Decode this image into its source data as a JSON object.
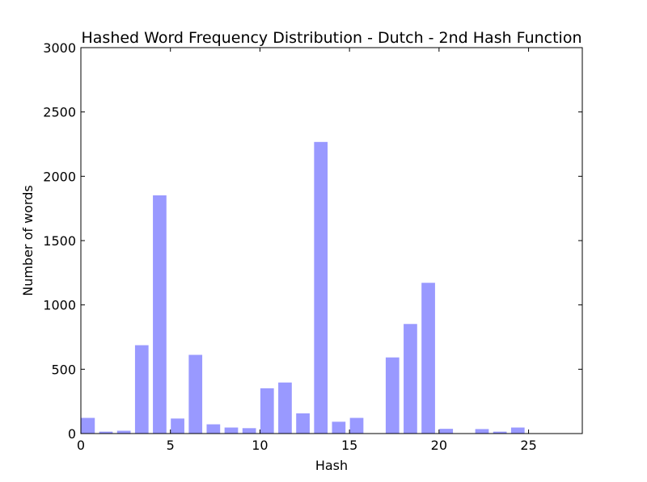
{
  "chart_data": {
    "type": "bar",
    "title": "Hashed Word Frequency Distribution - Dutch - 2nd Hash Function",
    "xlabel": "Hash",
    "ylabel": "Number of words",
    "xlim": [
      0,
      28
    ],
    "ylim": [
      0,
      3000
    ],
    "xticks": [
      0,
      5,
      10,
      15,
      20,
      25
    ],
    "yticks": [
      0,
      500,
      1000,
      1500,
      2000,
      2500,
      3000
    ],
    "bar_width": 0.8,
    "grid": false,
    "color": "#9999ff",
    "x": [
      0,
      1,
      2,
      3,
      4,
      5,
      6,
      7,
      8,
      9,
      10,
      11,
      12,
      13,
      14,
      15,
      16,
      17,
      18,
      19,
      20,
      21,
      22,
      23,
      24,
      25,
      26,
      27
    ],
    "values": [
      125,
      18,
      25,
      690,
      1855,
      120,
      615,
      75,
      50,
      45,
      355,
      400,
      160,
      2270,
      95,
      125,
      0,
      595,
      855,
      1175,
      40,
      5,
      38,
      18,
      50,
      2,
      2,
      5
    ]
  }
}
